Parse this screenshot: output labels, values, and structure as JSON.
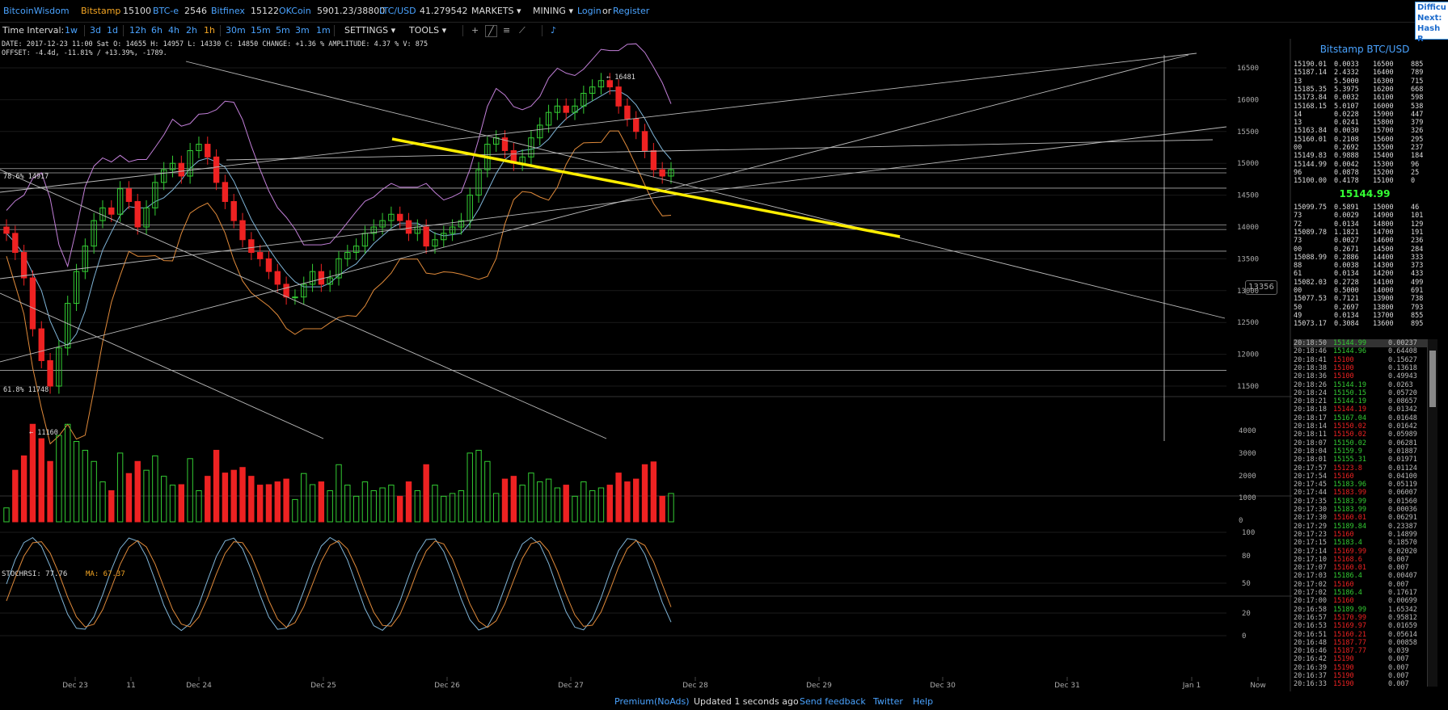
{
  "topbar": {
    "logo": "BitcoinWisdom",
    "exchanges": [
      {
        "name": "Bitstamp",
        "value": "15100"
      },
      {
        "name": "BTC-e",
        "value": "2546"
      },
      {
        "name": "Bitfinex",
        "value": "15122"
      },
      {
        "name": "OKCoin",
        "value": "5901.23/38800"
      },
      {
        "name": "LTC/USD",
        "value": "41.279542"
      }
    ],
    "markets": "MARKETS",
    "mining": "MINING",
    "login": "Login",
    "or": "or",
    "register": "Register"
  },
  "corner_box": {
    "line1": "Difficu",
    "line2": "Next:",
    "line3": "Hash R"
  },
  "toolbar": {
    "label": "Time Interval:",
    "intervals": [
      "1w",
      "3d",
      "1d",
      "12h",
      "6h",
      "4h",
      "2h",
      "1h",
      "30m",
      "15m",
      "5m",
      "3m",
      "1m"
    ],
    "active_interval": "1h",
    "settings": "SETTINGS",
    "tools": "TOOLS"
  },
  "info": {
    "line1": "DATE: 2017-12-23 11:00 Sat   O: 14655   H: 14957   L: 14330   C: 14850   CHANGE: +1.36 %   AMPLITUDE: 4.37 %   V: 875",
    "line2": "OFFSET: -4.4d, -11.81% / +13.39%, -1789."
  },
  "chart_annotations": {
    "high_label": "← 16481",
    "low_label": "← 11160",
    "fib_786": "78.6% 14917",
    "fib_618": "61.8% 11748",
    "current_price_tag": "13356",
    "stochrsi_label": "STOCHRSI: 77.76",
    "ma_label": "MA: 67.37"
  },
  "chart_data": {
    "type": "line",
    "price_axis_ticks": [
      "16500",
      "16000",
      "15500",
      "15000",
      "14500",
      "14000",
      "13500",
      "13000",
      "12500",
      "12000",
      "11500"
    ],
    "volume_axis_ticks": [
      "4000",
      "3000",
      "2000",
      "1000",
      "0"
    ],
    "stoch_axis_ticks": [
      "100",
      "80",
      "50",
      "20",
      "0"
    ],
    "x_ticks": [
      "Dec 23",
      "11",
      "Dec 24",
      "Dec 25",
      "Dec 26",
      "Dec 27",
      "Dec 28",
      "Dec 29",
      "Dec 30",
      "Dec 31",
      "Jan 1",
      "Now"
    ],
    "ylim": [
      11000,
      16800
    ],
    "close_series": [
      13900,
      13600,
      13200,
      12400,
      11900,
      11500,
      12100,
      12800,
      13300,
      13700,
      14100,
      14300,
      14200,
      14600,
      14400,
      14000,
      14300,
      14700,
      14900,
      15000,
      14800,
      15200,
      15300,
      15100,
      14700,
      14400,
      14100,
      13800,
      13600,
      13500,
      13300,
      13100,
      12900,
      12900,
      13100,
      13300,
      13100,
      13200,
      13500,
      13600,
      13700,
      13900,
      14000,
      14100,
      14200,
      14100,
      13900,
      14000,
      13700,
      13800,
      13900,
      14000,
      14100,
      14500,
      14900,
      15300,
      15400,
      15200,
      15000,
      15100,
      15400,
      15600,
      15800,
      15900,
      15800,
      15900,
      16100,
      16200,
      16300,
      16200,
      15900,
      15700,
      15500,
      15200,
      14900,
      14800,
      14900
    ]
  },
  "orderbook": {
    "title": "Bitstamp BTC/USD",
    "asks": [
      [
        "15190.01",
        "0.0033",
        "16500",
        "885"
      ],
      [
        "15187.14",
        "2.4332",
        "16400",
        "789"
      ],
      [
        "13",
        "5.5000",
        "16300",
        "715"
      ],
      [
        "15185.35",
        "5.3975",
        "16200",
        "668"
      ],
      [
        "15173.84",
        "0.0032",
        "16100",
        "598"
      ],
      [
        "15168.15",
        "5.0107",
        "16000",
        "538"
      ],
      [
        "14",
        "0.0228",
        "15900",
        "447"
      ],
      [
        "13",
        "0.0241",
        "15800",
        "379"
      ],
      [
        "15163.84",
        "0.0030",
        "15700",
        "326"
      ],
      [
        "15160.01",
        "0.2108",
        "15600",
        "295"
      ],
      [
        "00",
        "0.2692",
        "15500",
        "237"
      ],
      [
        "15149.83",
        "0.9888",
        "15400",
        "184"
      ],
      [
        "15144.99",
        "0.0042",
        "15300",
        "96"
      ],
      [
        "96",
        "0.0878",
        "15200",
        "25"
      ],
      [
        "15100.00",
        "0.4178",
        "15100",
        "0"
      ]
    ],
    "last_price": "15144.99",
    "bids": [
      [
        "15099.75",
        "0.5891",
        "15000",
        "46"
      ],
      [
        "73",
        "0.0029",
        "14900",
        "101"
      ],
      [
        "72",
        "0.0134",
        "14800",
        "129"
      ],
      [
        "15089.78",
        "1.1821",
        "14700",
        "191"
      ],
      [
        "73",
        "0.0027",
        "14600",
        "236"
      ],
      [
        "00",
        "0.2671",
        "14500",
        "284"
      ],
      [
        "15088.99",
        "0.2886",
        "14400",
        "333"
      ],
      [
        "88",
        "0.0038",
        "14300",
        "373"
      ],
      [
        "61",
        "0.0134",
        "14200",
        "433"
      ],
      [
        "15082.03",
        "0.2728",
        "14100",
        "499"
      ],
      [
        "00",
        "0.5000",
        "14000",
        "691"
      ],
      [
        "15077.53",
        "0.7121",
        "13900",
        "738"
      ],
      [
        "50",
        "0.2697",
        "13800",
        "793"
      ],
      [
        "49",
        "0.0134",
        "13700",
        "855"
      ],
      [
        "15073.17",
        "0.3084",
        "13600",
        "895"
      ]
    ]
  },
  "trades": [
    [
      "20:18:50",
      "15144.99",
      "0.00237",
      "g"
    ],
    [
      "20:18:46",
      "15144.96",
      "0.64408",
      "g"
    ],
    [
      "20:18:41",
      "15100",
      "0.15627",
      "r"
    ],
    [
      "20:18:38",
      "15100",
      "0.13618",
      "r"
    ],
    [
      "20:18:36",
      "15100",
      "0.49943",
      "r"
    ],
    [
      "20:18:26",
      "15144.19",
      "0.0263",
      "g"
    ],
    [
      "20:18:24",
      "15150.15",
      "0.05720",
      "g"
    ],
    [
      "20:18:21",
      "15144.19",
      "0.08657",
      "g"
    ],
    [
      "20:18:18",
      "15144.19",
      "0.01342",
      "r"
    ],
    [
      "20:18:17",
      "15167.04",
      "0.01648",
      "g"
    ],
    [
      "20:18:14",
      "15150.02",
      "0.01642",
      "r"
    ],
    [
      "20:18:11",
      "15150.02",
      "0.05989",
      "r"
    ],
    [
      "20:18:07",
      "15150.02",
      "0.06281",
      "g"
    ],
    [
      "20:18:04",
      "15159.9",
      "0.01887",
      "g"
    ],
    [
      "20:18:01",
      "15155.31",
      "0.01971",
      "g"
    ],
    [
      "20:17:57",
      "15123.8",
      "0.01124",
      "r"
    ],
    [
      "20:17:54",
      "15160",
      "0.04100",
      "r"
    ],
    [
      "20:17:45",
      "15183.96",
      "0.05119",
      "g"
    ],
    [
      "20:17:44",
      "15183.99",
      "0.06007",
      "r"
    ],
    [
      "20:17:35",
      "15183.99",
      "0.01560",
      "g"
    ],
    [
      "20:17:30",
      "15183.99",
      "0.00036",
      "g"
    ],
    [
      "20:17:30",
      "15160.01",
      "0.06291",
      "r"
    ],
    [
      "20:17:29",
      "15189.84",
      "0.23387",
      "g"
    ],
    [
      "20:17:23",
      "15160",
      "0.14899",
      "r"
    ],
    [
      "20:17:15",
      "15183.4",
      "0.18570",
      "g"
    ],
    [
      "20:17:14",
      "15169.99",
      "0.02020",
      "r"
    ],
    [
      "20:17:10",
      "15168.6",
      "0.007",
      "r"
    ],
    [
      "20:17:07",
      "15160.01",
      "0.007",
      "r"
    ],
    [
      "20:17:03",
      "15186.4",
      "0.00407",
      "g"
    ],
    [
      "20:17:02",
      "15160",
      "0.007",
      "r"
    ],
    [
      "20:17:02",
      "15186.4",
      "0.17617",
      "g"
    ],
    [
      "20:17:00",
      "15160",
      "0.00699",
      "r"
    ],
    [
      "20:16:58",
      "15189.99",
      "1.65342",
      "g"
    ],
    [
      "20:16:57",
      "15170.99",
      "0.95812",
      "r"
    ],
    [
      "20:16:53",
      "15169.97",
      "0.01659",
      "r"
    ],
    [
      "20:16:51",
      "15160.21",
      "0.05614",
      "r"
    ],
    [
      "20:16:48",
      "15187.77",
      "0.00858",
      "r"
    ],
    [
      "20:16:46",
      "15187.77",
      "0.039",
      "r"
    ],
    [
      "20:16:42",
      "15190",
      "0.007",
      "r"
    ],
    [
      "20:16:39",
      "15190",
      "0.007",
      "r"
    ],
    [
      "20:16:37",
      "15190",
      "0.007",
      "r"
    ],
    [
      "20:16:33",
      "15190",
      "0.007",
      "r"
    ]
  ],
  "footer": {
    "premium": "Premium(NoAds)",
    "updated": "Updated 1 seconds ago",
    "feedback": "Send feedback",
    "twitter": "Twitter",
    "help": "Help"
  },
  "colors": {
    "up": "#3c3",
    "down": "#e22",
    "accent": "#4aa3ff",
    "trendline": "#ffee00"
  }
}
